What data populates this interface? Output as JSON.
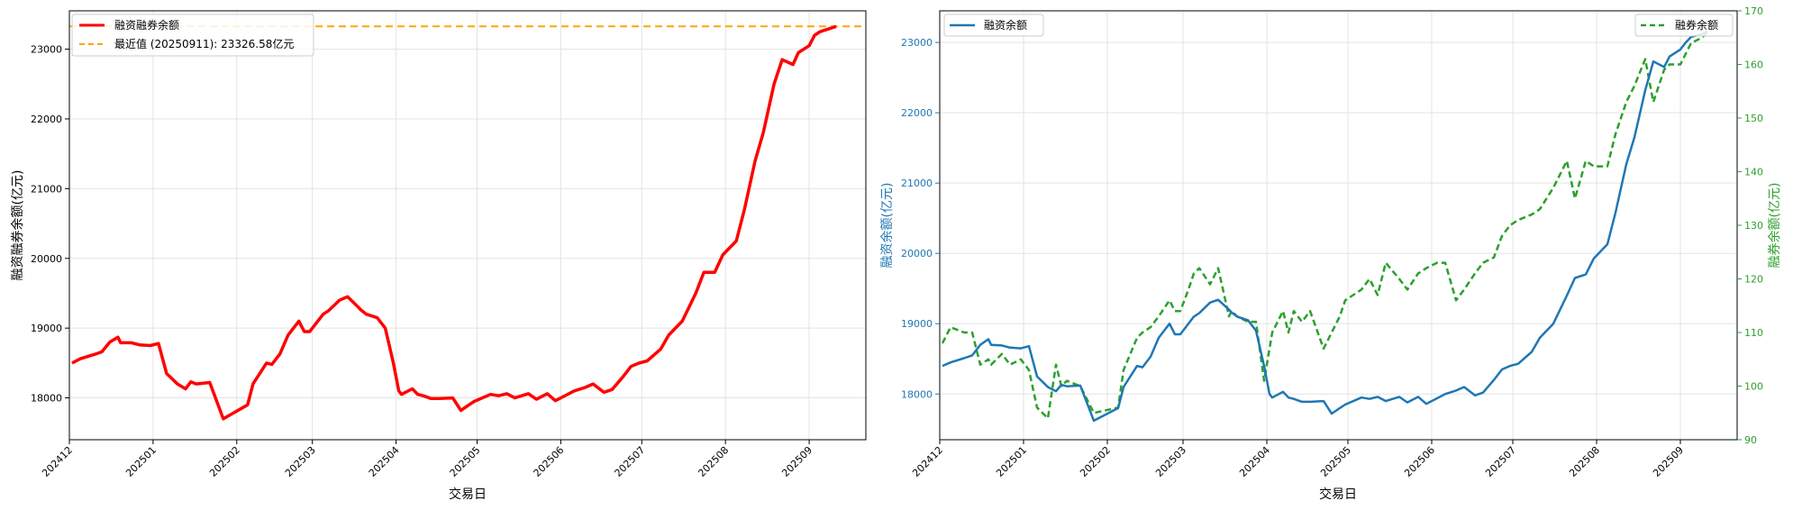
{
  "chart_data": [
    {
      "type": "line",
      "xlabel": "交易日",
      "ylabel": "融资融券余额(亿元)",
      "x_ticks": [
        "202412",
        "202501",
        "202502",
        "202503",
        "202504",
        "202505",
        "202506",
        "202507",
        "202508",
        "202509"
      ],
      "y_ticks": [
        18000,
        19000,
        20000,
        21000,
        22000,
        23000
      ],
      "ylim": [
        17400,
        23550
      ],
      "grid": true,
      "legend_position": "top-left",
      "colors": {
        "series": "#ff0000",
        "reference": "#ffa500"
      },
      "series": [
        {
          "name": "融资融券余额",
          "x": [
            "2024-12-02",
            "2024-12-05",
            "2024-12-10",
            "2024-12-13",
            "2024-12-16",
            "2024-12-19",
            "2024-12-20",
            "2024-12-24",
            "2024-12-27",
            "2024-12-31",
            "2025-01-03",
            "2025-01-06",
            "2025-01-10",
            "2025-01-13",
            "2025-01-15",
            "2025-01-17",
            "2025-01-22",
            "2025-01-27",
            "2025-02-05",
            "2025-02-07",
            "2025-02-12",
            "2025-02-14",
            "2025-02-17",
            "2025-02-20",
            "2025-02-24",
            "2025-02-26",
            "2025-02-28",
            "2025-03-03",
            "2025-03-05",
            "2025-03-07",
            "2025-03-11",
            "2025-03-14",
            "2025-03-18",
            "2025-03-19",
            "2025-03-21",
            "2025-03-25",
            "2025-03-28",
            "2025-03-31",
            "2025-04-02",
            "2025-04-03",
            "2025-04-07",
            "2025-04-09",
            "2025-04-11",
            "2025-04-14",
            "2025-04-17",
            "2025-04-22",
            "2025-04-25",
            "2025-04-28",
            "2025-04-30",
            "2025-05-06",
            "2025-05-09",
            "2025-05-12",
            "2025-05-15",
            "2025-05-20",
            "2025-05-23",
            "2025-05-27",
            "2025-05-30",
            "2025-06-03",
            "2025-06-06",
            "2025-06-10",
            "2025-06-13",
            "2025-06-17",
            "2025-06-20",
            "2025-06-24",
            "2025-06-27",
            "2025-06-30",
            "2025-07-03",
            "2025-07-08",
            "2025-07-11",
            "2025-07-16",
            "2025-07-21",
            "2025-07-24",
            "2025-07-28",
            "2025-07-31",
            "2025-08-05",
            "2025-08-08",
            "2025-08-12",
            "2025-08-15",
            "2025-08-19",
            "2025-08-22",
            "2025-08-26",
            "2025-08-28",
            "2025-09-01",
            "2025-09-03",
            "2025-09-05",
            "2025-09-09",
            "2025-09-11"
          ],
          "values": [
            18500,
            18560,
            18620,
            18660,
            18800,
            18870,
            18790,
            18790,
            18760,
            18750,
            18780,
            18350,
            18200,
            18130,
            18230,
            18200,
            18220,
            17700,
            17900,
            18200,
            18500,
            18480,
            18630,
            18900,
            19100,
            18950,
            18950,
            19100,
            19200,
            19250,
            19400,
            19450,
            19300,
            19260,
            19200,
            19150,
            19000,
            18500,
            18100,
            18050,
            18130,
            18050,
            18030,
            17990,
            17990,
            18000,
            17820,
            17900,
            17950,
            18050,
            18030,
            18060,
            18000,
            18060,
            17980,
            18060,
            17960,
            18040,
            18100,
            18150,
            18200,
            18080,
            18120,
            18300,
            18450,
            18500,
            18530,
            18700,
            18900,
            19100,
            19500,
            19800,
            19800,
            20050,
            20250,
            20700,
            21400,
            21800,
            22500,
            22850,
            22780,
            22950,
            23050,
            23200,
            23250,
            23300,
            23326.58
          ]
        },
        {
          "name": "最近值 (20250911): 23326.58亿元",
          "constant": 23326.58
        }
      ]
    },
    {
      "type": "line",
      "xlabel": "交易日",
      "ylabel_left": "融资余额(亿元)",
      "ylabel_right": "融券余额(亿元)",
      "x_ticks": [
        "202412",
        "202501",
        "202502",
        "202503",
        "202504",
        "202505",
        "202506",
        "202507",
        "202508",
        "202509"
      ],
      "y_ticks_left": [
        18000,
        19000,
        20000,
        21000,
        22000,
        23000
      ],
      "y_ticks_right": [
        90,
        100,
        110,
        120,
        130,
        140,
        150,
        160,
        170
      ],
      "ylim_left": [
        17350,
        23450
      ],
      "ylim_right": [
        90,
        170
      ],
      "grid": true,
      "legend_position": [
        "top-left",
        "top-right"
      ],
      "colors": {
        "left_axis": "#1f77b4",
        "right_axis": "#2ca02c"
      },
      "series": [
        {
          "name": "融资余额",
          "axis": "left",
          "x": [
            "2024-12-02",
            "2024-12-05",
            "2024-12-10",
            "2024-12-13",
            "2024-12-16",
            "2024-12-19",
            "2024-12-20",
            "2024-12-24",
            "2024-12-27",
            "2024-12-31",
            "2025-01-03",
            "2025-01-06",
            "2025-01-10",
            "2025-01-13",
            "2025-01-15",
            "2025-01-17",
            "2025-01-22",
            "2025-01-27",
            "2025-02-05",
            "2025-02-07",
            "2025-02-12",
            "2025-02-14",
            "2025-02-17",
            "2025-02-20",
            "2025-02-24",
            "2025-02-26",
            "2025-02-28",
            "2025-03-03",
            "2025-03-05",
            "2025-03-07",
            "2025-03-11",
            "2025-03-14",
            "2025-03-18",
            "2025-03-19",
            "2025-03-21",
            "2025-03-25",
            "2025-03-28",
            "2025-03-31",
            "2025-04-02",
            "2025-04-03",
            "2025-04-07",
            "2025-04-09",
            "2025-04-11",
            "2025-04-14",
            "2025-04-17",
            "2025-04-22",
            "2025-04-25",
            "2025-04-28",
            "2025-04-30",
            "2025-05-06",
            "2025-05-09",
            "2025-05-12",
            "2025-05-15",
            "2025-05-20",
            "2025-05-23",
            "2025-05-27",
            "2025-05-30",
            "2025-06-03",
            "2025-06-06",
            "2025-06-10",
            "2025-06-13",
            "2025-06-17",
            "2025-06-20",
            "2025-06-24",
            "2025-06-27",
            "2025-06-30",
            "2025-07-03",
            "2025-07-08",
            "2025-07-11",
            "2025-07-16",
            "2025-07-21",
            "2025-07-24",
            "2025-07-28",
            "2025-07-31",
            "2025-08-05",
            "2025-08-08",
            "2025-08-12",
            "2025-08-15",
            "2025-08-19",
            "2025-08-22",
            "2025-08-26",
            "2025-08-28",
            "2025-09-01",
            "2025-09-03",
            "2025-09-05",
            "2025-09-09",
            "2025-09-11"
          ],
          "values": [
            18400,
            18450,
            18510,
            18550,
            18700,
            18780,
            18700,
            18690,
            18660,
            18650,
            18680,
            18250,
            18100,
            18040,
            18130,
            18110,
            18120,
            17620,
            17800,
            18100,
            18400,
            18380,
            18530,
            18800,
            19000,
            18850,
            18850,
            19000,
            19100,
            19150,
            19300,
            19340,
            19200,
            19160,
            19100,
            19050,
            18900,
            18400,
            18000,
            17950,
            18030,
            17950,
            17930,
            17890,
            17890,
            17900,
            17720,
            17800,
            17850,
            17950,
            17930,
            17960,
            17900,
            17960,
            17880,
            17960,
            17860,
            17940,
            18000,
            18050,
            18100,
            17980,
            18020,
            18200,
            18350,
            18400,
            18430,
            18600,
            18800,
            19000,
            19400,
            19650,
            19700,
            19930,
            20130,
            20580,
            21270,
            21650,
            22320,
            22730,
            22650,
            22800,
            22900,
            23000,
            23080,
            23120,
            23160
          ]
        },
        {
          "name": "融券余额",
          "axis": "right",
          "x": [
            "2024-12-02",
            "2024-12-05",
            "2024-12-10",
            "2024-12-13",
            "2024-12-16",
            "2024-12-19",
            "2024-12-20",
            "2024-12-24",
            "2024-12-27",
            "2024-12-31",
            "2025-01-03",
            "2025-01-06",
            "2025-01-10",
            "2025-01-13",
            "2025-01-15",
            "2025-01-17",
            "2025-01-22",
            "2025-01-27",
            "2025-02-05",
            "2025-02-07",
            "2025-02-12",
            "2025-02-14",
            "2025-02-17",
            "2025-02-20",
            "2025-02-24",
            "2025-02-26",
            "2025-02-28",
            "2025-03-03",
            "2025-03-05",
            "2025-03-07",
            "2025-03-11",
            "2025-03-14",
            "2025-03-18",
            "2025-03-19",
            "2025-03-21",
            "2025-03-25",
            "2025-03-28",
            "2025-03-31",
            "2025-04-02",
            "2025-04-03",
            "2025-04-07",
            "2025-04-09",
            "2025-04-11",
            "2025-04-14",
            "2025-04-17",
            "2025-04-22",
            "2025-04-25",
            "2025-04-28",
            "2025-04-30",
            "2025-05-06",
            "2025-05-09",
            "2025-05-12",
            "2025-05-15",
            "2025-05-20",
            "2025-05-23",
            "2025-05-27",
            "2025-05-30",
            "2025-06-03",
            "2025-06-06",
            "2025-06-10",
            "2025-06-13",
            "2025-06-17",
            "2025-06-20",
            "2025-06-24",
            "2025-06-27",
            "2025-06-30",
            "2025-07-03",
            "2025-07-08",
            "2025-07-11",
            "2025-07-16",
            "2025-07-21",
            "2025-07-24",
            "2025-07-28",
            "2025-07-31",
            "2025-08-05",
            "2025-08-08",
            "2025-08-12",
            "2025-08-15",
            "2025-08-19",
            "2025-08-22",
            "2025-08-26",
            "2025-08-28",
            "2025-09-01",
            "2025-09-03",
            "2025-09-05",
            "2025-09-09",
            "2025-09-11"
          ],
          "values": [
            108,
            111,
            110,
            110,
            104,
            105,
            104,
            106,
            104,
            105,
            103,
            96,
            94,
            104,
            100,
            101,
            100,
            95,
            96,
            103,
            109,
            110,
            111,
            113,
            116,
            114,
            114,
            118,
            121,
            122,
            119,
            122,
            113,
            114,
            113,
            112,
            112,
            101,
            107,
            110,
            114,
            110,
            114,
            112,
            114,
            107,
            110,
            113,
            116,
            118,
            120,
            117,
            123,
            120,
            118,
            121,
            122,
            123,
            123,
            116,
            118,
            121,
            123,
            124,
            128,
            130,
            131,
            132,
            133,
            137,
            142,
            135,
            142,
            141,
            141,
            147,
            153,
            156,
            161,
            153,
            159,
            160,
            160,
            162,
            164,
            165,
            166
          ]
        }
      ]
    }
  ]
}
